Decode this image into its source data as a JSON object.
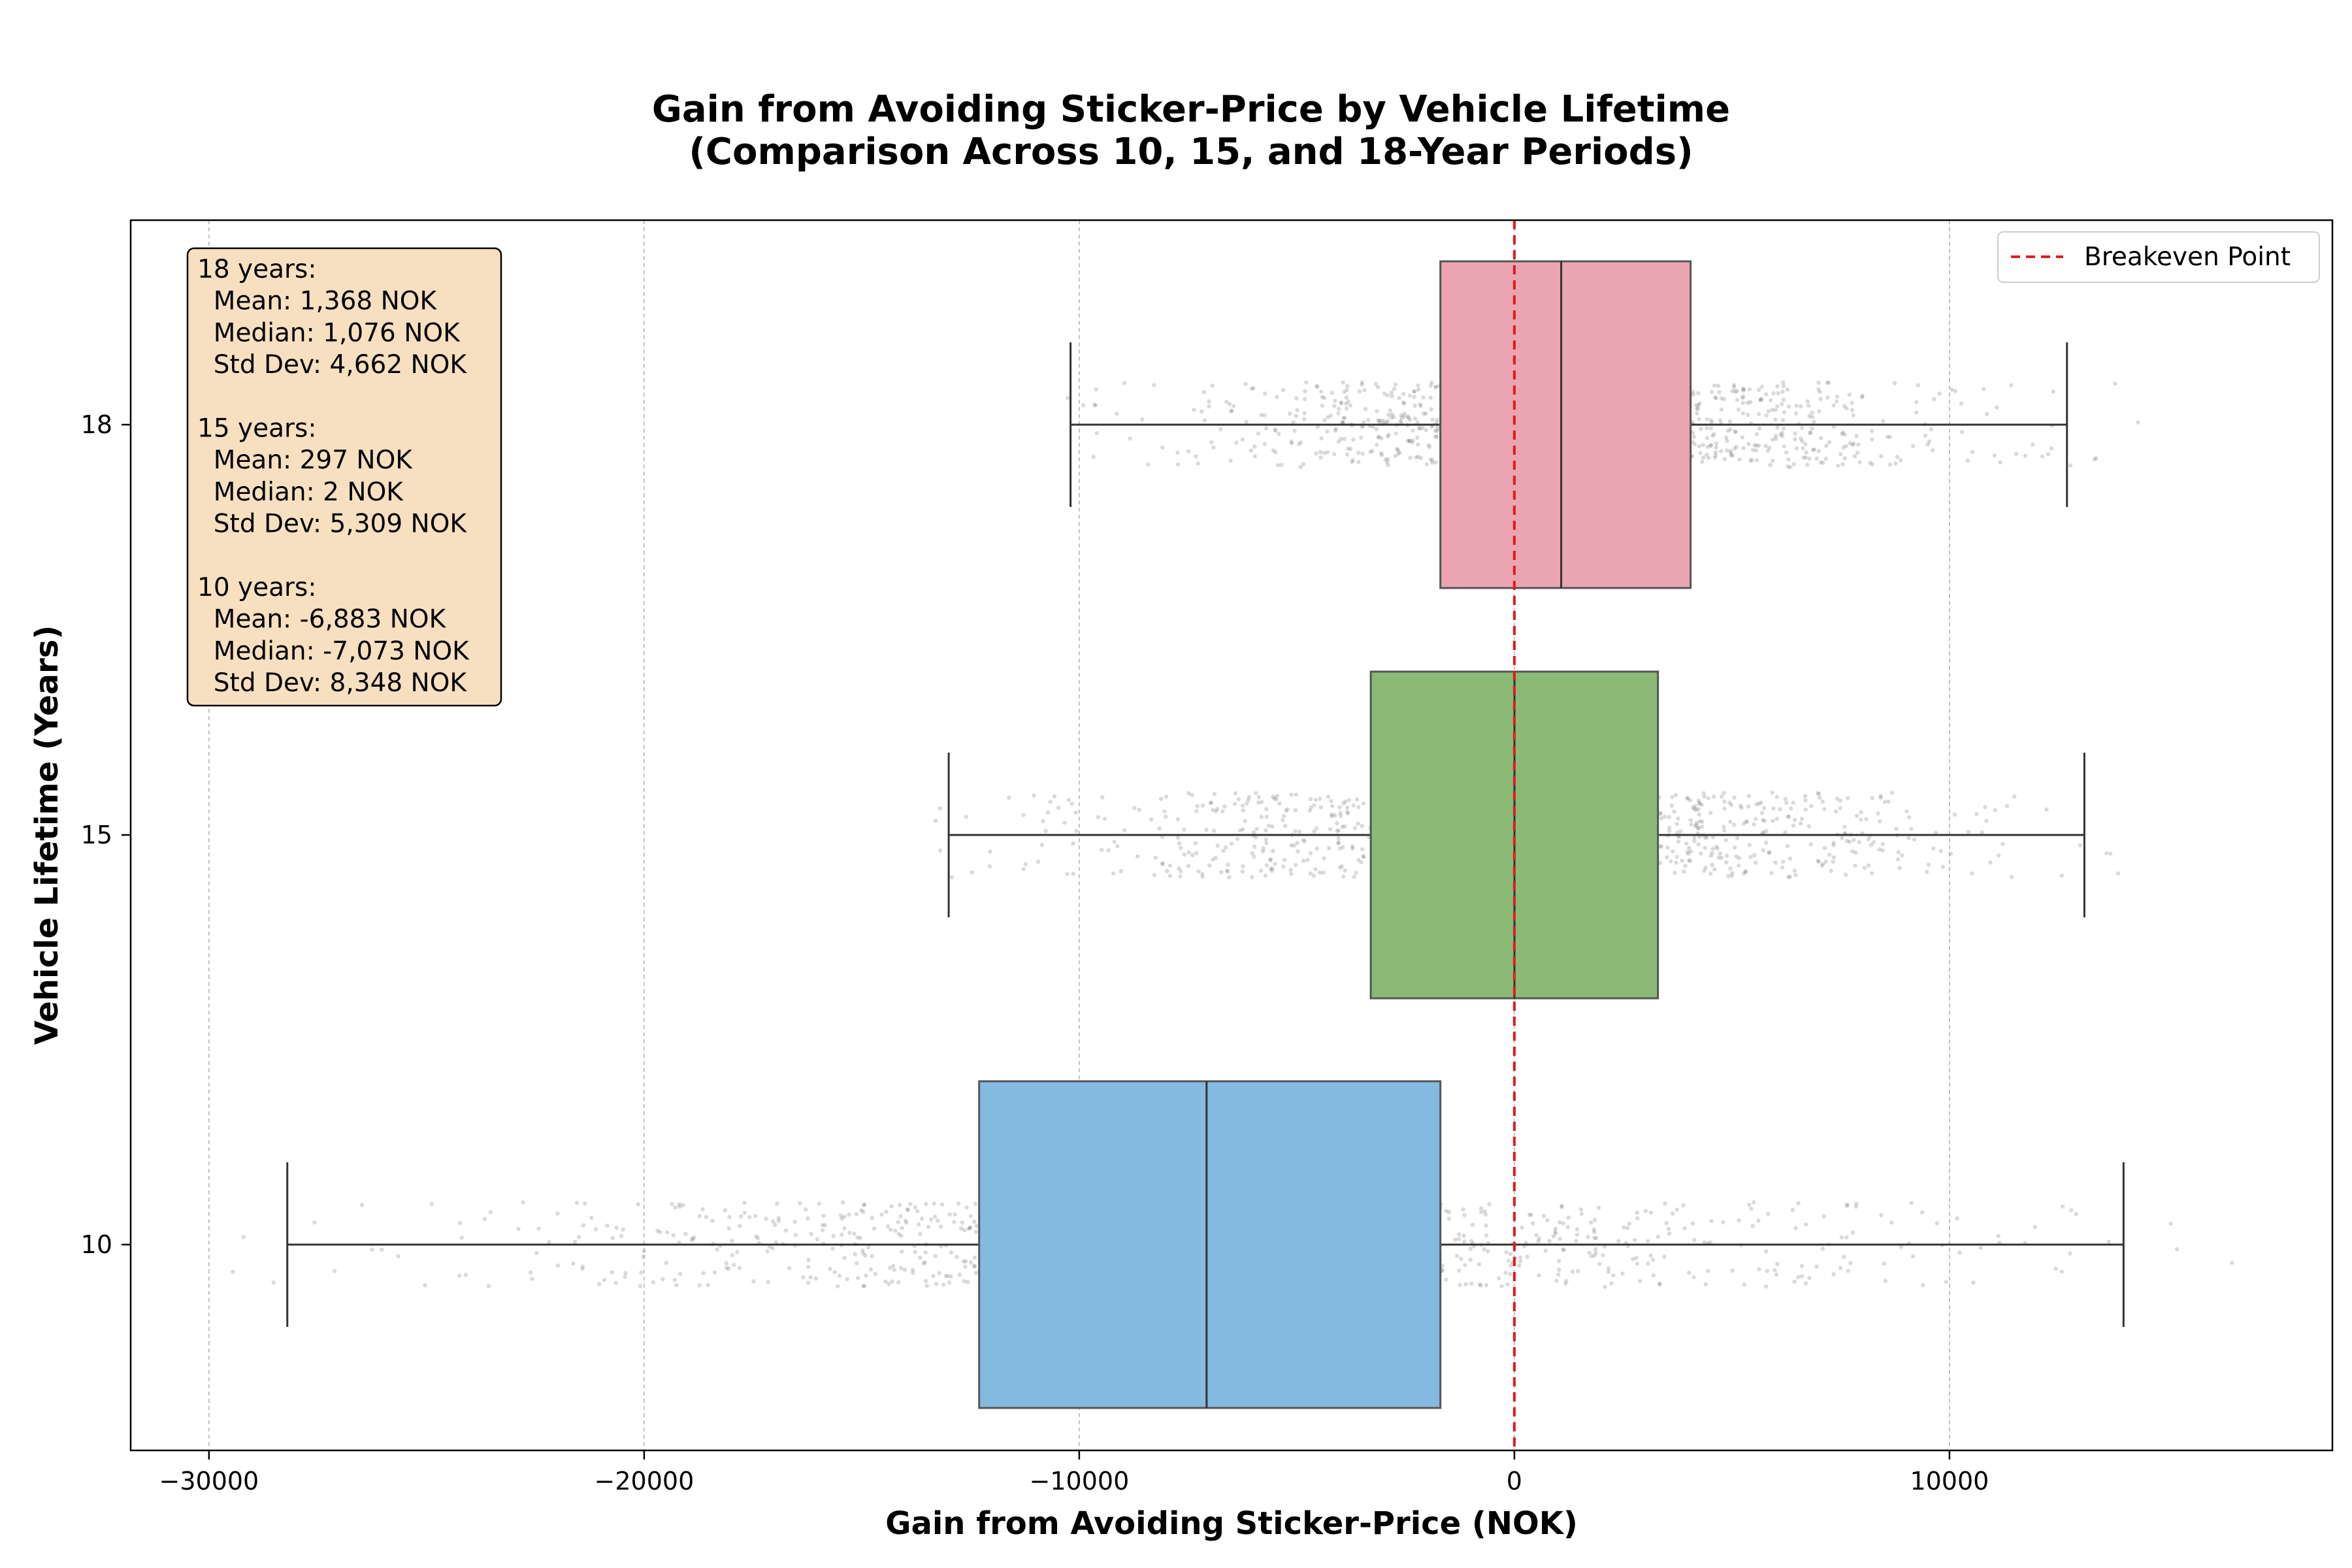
{
  "chart_data": {
    "type": "box",
    "title_lines": [
      "Gain from Avoiding Sticker-Price by Vehicle Lifetime",
      "(Comparison Across 10, 15, and 18-Year Periods)"
    ],
    "xlabel": "Gain from Avoiding Sticker-Price (NOK)",
    "ylabel": "Vehicle Lifetime (Years)",
    "xlim": [
      -31800,
      18800
    ],
    "x_ticks": [
      -30000,
      -20000,
      -10000,
      0,
      10000
    ],
    "x_tick_labels": [
      "−30000",
      "−20000",
      "−10000",
      "0",
      "10000"
    ],
    "y_categories": [
      "18",
      "15",
      "10"
    ],
    "grid": "x",
    "reference_line": {
      "x": 0,
      "label": "Breakeven Point",
      "color": "#e41a1c",
      "style": "dashed"
    },
    "legend": {
      "position": "top-right",
      "entries": [
        "Breakeven Point"
      ]
    },
    "series": [
      {
        "category": "18",
        "whisker_low": -10200,
        "q1": -1700,
        "median": 1076,
        "q3": 4050,
        "whisker_high": 12700,
        "mean": 1368,
        "std": 4662,
        "scatter_range": [
          -11300,
          14500
        ],
        "color": "#eba5b2"
      },
      {
        "category": "15",
        "whisker_low": -13000,
        "q1": -3300,
        "median": 2,
        "q3": 3300,
        "whisker_high": 13100,
        "mean": 297,
        "std": 5309,
        "scatter_range": [
          -14200,
          14900
        ],
        "color": "#8aba76"
      },
      {
        "category": "10",
        "whisker_low": -28200,
        "q1": -12300,
        "median": -7073,
        "q3": -1700,
        "whisker_high": 14000,
        "mean": -6883,
        "std": 8348,
        "scatter_range": [
          -29500,
          16500
        ],
        "color": "#84b9e0"
      }
    ],
    "stats_box": {
      "lines": [
        "18 years:",
        "  Mean: 1,368 NOK",
        "  Median: 1,076 NOK",
        "  Std Dev: 4,662 NOK",
        "",
        "15 years:",
        "  Mean: 297 NOK",
        "  Median: 2 NOK",
        "  Std Dev: 5,309 NOK",
        "",
        "10 years:",
        "  Mean: -6,883 NOK",
        "  Median: -7,073 NOK",
        "  Std Dev: 8,348 NOK"
      ],
      "background": "#f7e0c0"
    }
  }
}
